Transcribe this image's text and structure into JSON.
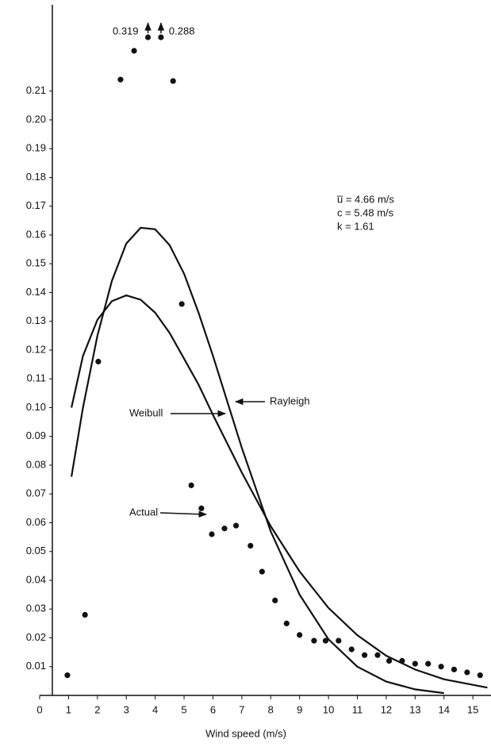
{
  "chart_data": {
    "type": "line",
    "xlabel": "Wind speed (m/s)",
    "xlim": [
      0,
      15.6
    ],
    "ylim": [
      0,
      0.24
    ],
    "xticks": [
      0,
      1,
      2,
      3,
      4,
      5,
      6,
      7,
      8,
      9,
      10,
      11,
      12,
      13,
      14,
      15
    ],
    "yticks": [
      0.01,
      0.02,
      0.03,
      0.04,
      0.05,
      0.06,
      0.07,
      0.08,
      0.09,
      {
        "value": 0.1,
        "label": "0.10"
      },
      0.11,
      0.12,
      0.13,
      0.14,
      0.15,
      0.16,
      0.17,
      0.18,
      0.19,
      {
        "value": 0.2,
        "label": "0.20"
      },
      0.21
    ],
    "series": [
      {
        "name": "Rayleigh",
        "type": "line",
        "color": "#111111",
        "x": [
          1.1,
          1.5,
          2,
          2.5,
          3,
          3.5,
          4,
          4.5,
          5,
          5.5,
          6,
          7,
          8,
          9,
          10,
          11,
          12,
          13,
          14
        ],
        "values": [
          0.076,
          0.1,
          0.125,
          0.144,
          0.157,
          0.1625,
          0.162,
          0.1565,
          0.1465,
          0.133,
          0.118,
          0.086,
          0.057,
          0.035,
          0.0195,
          0.01,
          0.0048,
          0.0021,
          0.0008
        ]
      },
      {
        "name": "Weibull",
        "type": "line",
        "color": "#111111",
        "x": [
          1.1,
          1.5,
          2,
          2.5,
          3,
          3.5,
          4,
          4.5,
          5,
          5.5,
          6,
          7,
          8,
          9,
          10,
          11,
          12,
          13,
          14,
          15.5
        ],
        "values": [
          0.1,
          0.118,
          0.1305,
          0.137,
          0.139,
          0.1375,
          0.133,
          0.126,
          0.117,
          0.108,
          0.0975,
          0.0774,
          0.0588,
          0.0431,
          0.0304,
          0.0209,
          0.0138,
          0.009,
          0.0056,
          0.0027
        ]
      },
      {
        "name": "Actual",
        "type": "scatter",
        "color": "#111111",
        "x": [
          0.96,
          1.57,
          2.03,
          2.8,
          3.27,
          4.62,
          4.92,
          5.25,
          5.6,
          5.96,
          6.4,
          6.8,
          7.3,
          7.7,
          8.15,
          8.55,
          9.0,
          9.5,
          9.9,
          10.35,
          10.8,
          11.25,
          11.7,
          12.1,
          12.55,
          13.0,
          13.45,
          13.9,
          14.35,
          14.8,
          15.25
        ],
        "values": [
          0.007,
          0.028,
          0.116,
          0.214,
          0.224,
          0.2135,
          0.136,
          0.073,
          0.065,
          0.056,
          0.058,
          0.059,
          0.052,
          0.043,
          0.033,
          0.025,
          0.021,
          0.019,
          0.019,
          0.019,
          0.016,
          0.014,
          0.014,
          0.012,
          0.012,
          0.011,
          0.011,
          0.01,
          0.009,
          0.008,
          0.007
        ]
      }
    ],
    "offscale_points": [
      {
        "x": 3.75,
        "label": "0.319"
      },
      {
        "x": 4.2,
        "label": "0.288"
      }
    ],
    "parameters": [
      "u̅ = 4.66 m/s",
      "c = 5.48 m/s",
      "k = 1.61"
    ]
  }
}
